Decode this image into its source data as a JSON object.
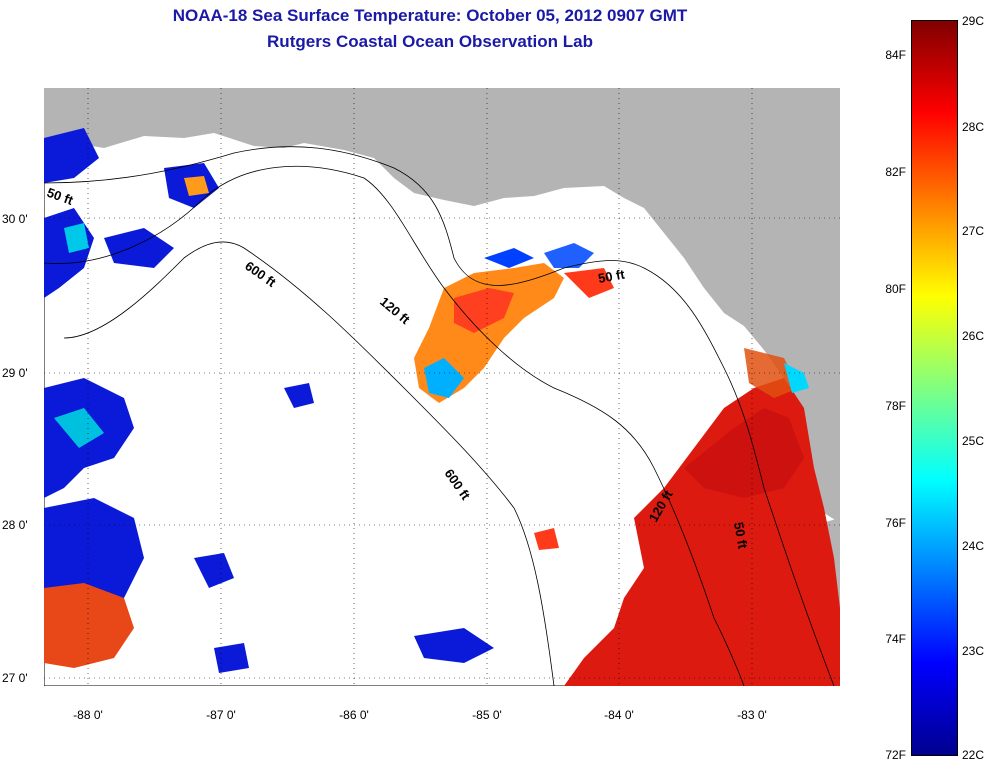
{
  "title": "NOAA-18 Sea Surface Temperature:  October 05, 2012 0907 GMT",
  "subtitle": "Rutgers Coastal Ocean Observation Lab",
  "y_axis_labels": [
    "30 0'",
    "29 0'",
    "28 0'",
    "27 0'"
  ],
  "x_axis_labels": [
    "-88 0'",
    "-87 0'",
    "-86 0'",
    "-85 0'",
    "-84 0'",
    "-83 0'"
  ],
  "isobath_labels": [
    "50 ft",
    "600 ft",
    "120 ft",
    "50 ft",
    "600 ft",
    "120 ft",
    "50 ft"
  ],
  "colorbar": {
    "fahrenheit_labels": [
      "84F",
      "82F",
      "80F",
      "78F",
      "76F",
      "74F",
      "72F"
    ],
    "celsius_labels": [
      "29C",
      "28C",
      "27C",
      "26C",
      "25C",
      "24C",
      "23C",
      "22C"
    ],
    "colors": [
      "#00008f",
      "#0000ff",
      "#0080ff",
      "#00ffff",
      "#80ff80",
      "#ffff00",
      "#ff8000",
      "#ff0000",
      "#800000"
    ]
  },
  "colors": {
    "land": "#b4b4b4",
    "title": "#1a1aa6",
    "no_data": "#ffffff"
  }
}
